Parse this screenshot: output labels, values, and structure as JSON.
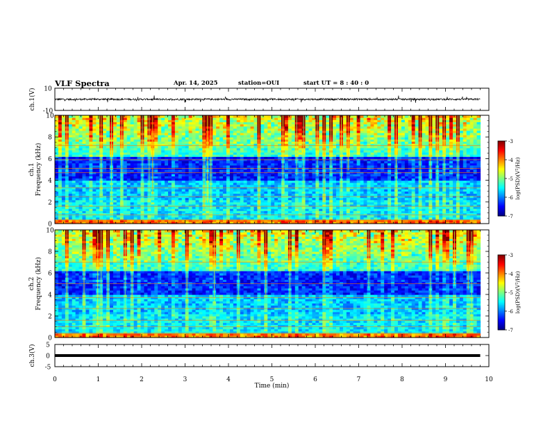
{
  "header": {
    "title": "VLF Spectra",
    "date": "Apr. 14, 2025",
    "station": "station=OUI",
    "start": "start  UT =  8 : 40 : 0"
  },
  "chart_data": [
    {
      "type": "line",
      "panel": "ch1-waveform",
      "ylabel": "ch.1(V)",
      "ylim": [
        -10,
        10
      ],
      "yticks": [
        "10",
        "-10"
      ],
      "xlim": [
        0,
        10
      ],
      "baseline": 0,
      "description_free": true
    },
    {
      "type": "heatmap",
      "panel": "ch1-spectrogram",
      "ylabel_top": "ch.1",
      "ylabel": "Frequency (kHz)",
      "ylim": [
        0,
        10
      ],
      "yticks": [
        "0",
        "2",
        "4",
        "6",
        "8",
        "10"
      ],
      "xlim": [
        0,
        10
      ],
      "data_end_min": 9.8,
      "colorbar": {
        "label": "log(PSD)(V²/Hz)",
        "range": [
          -7,
          -3
        ],
        "ticks": [
          "-3",
          "-4",
          "-5",
          "-6",
          "-7"
        ]
      },
      "lines_khz": [
        0.3,
        0.8,
        1.6,
        2.5,
        3.3,
        4.7,
        5.1,
        5.9,
        7.2
      ]
    },
    {
      "type": "heatmap",
      "panel": "ch2-spectrogram",
      "ylabel_top": "ch.2",
      "ylabel": "Frequency (kHz)",
      "ylim": [
        0,
        10
      ],
      "yticks": [
        "0",
        "2",
        "4",
        "6",
        "8",
        "10"
      ],
      "xlim": [
        0,
        10
      ],
      "data_end_min": 9.8,
      "colorbar": {
        "label": "log(PSD)(V²/Hz)",
        "range": [
          -7,
          -3
        ],
        "ticks": [
          "-3",
          "-4",
          "-5",
          "-6",
          "-7"
        ]
      },
      "lines_khz": [
        0.4,
        1.0,
        1.6,
        2.7,
        3.7,
        5.0,
        7.0
      ]
    },
    {
      "type": "line",
      "panel": "ch3-waveform",
      "ylabel": "ch.3(V)",
      "ylim": [
        -5,
        5
      ],
      "yticks": [
        "5",
        "0",
        "-5"
      ],
      "xlim": [
        0,
        10
      ],
      "baseline": 0
    }
  ],
  "xaxis": {
    "label": "Time (min)",
    "ticks": [
      "0",
      "1",
      "2",
      "3",
      "4",
      "5",
      "6",
      "7",
      "8",
      "9",
      "10"
    ]
  }
}
